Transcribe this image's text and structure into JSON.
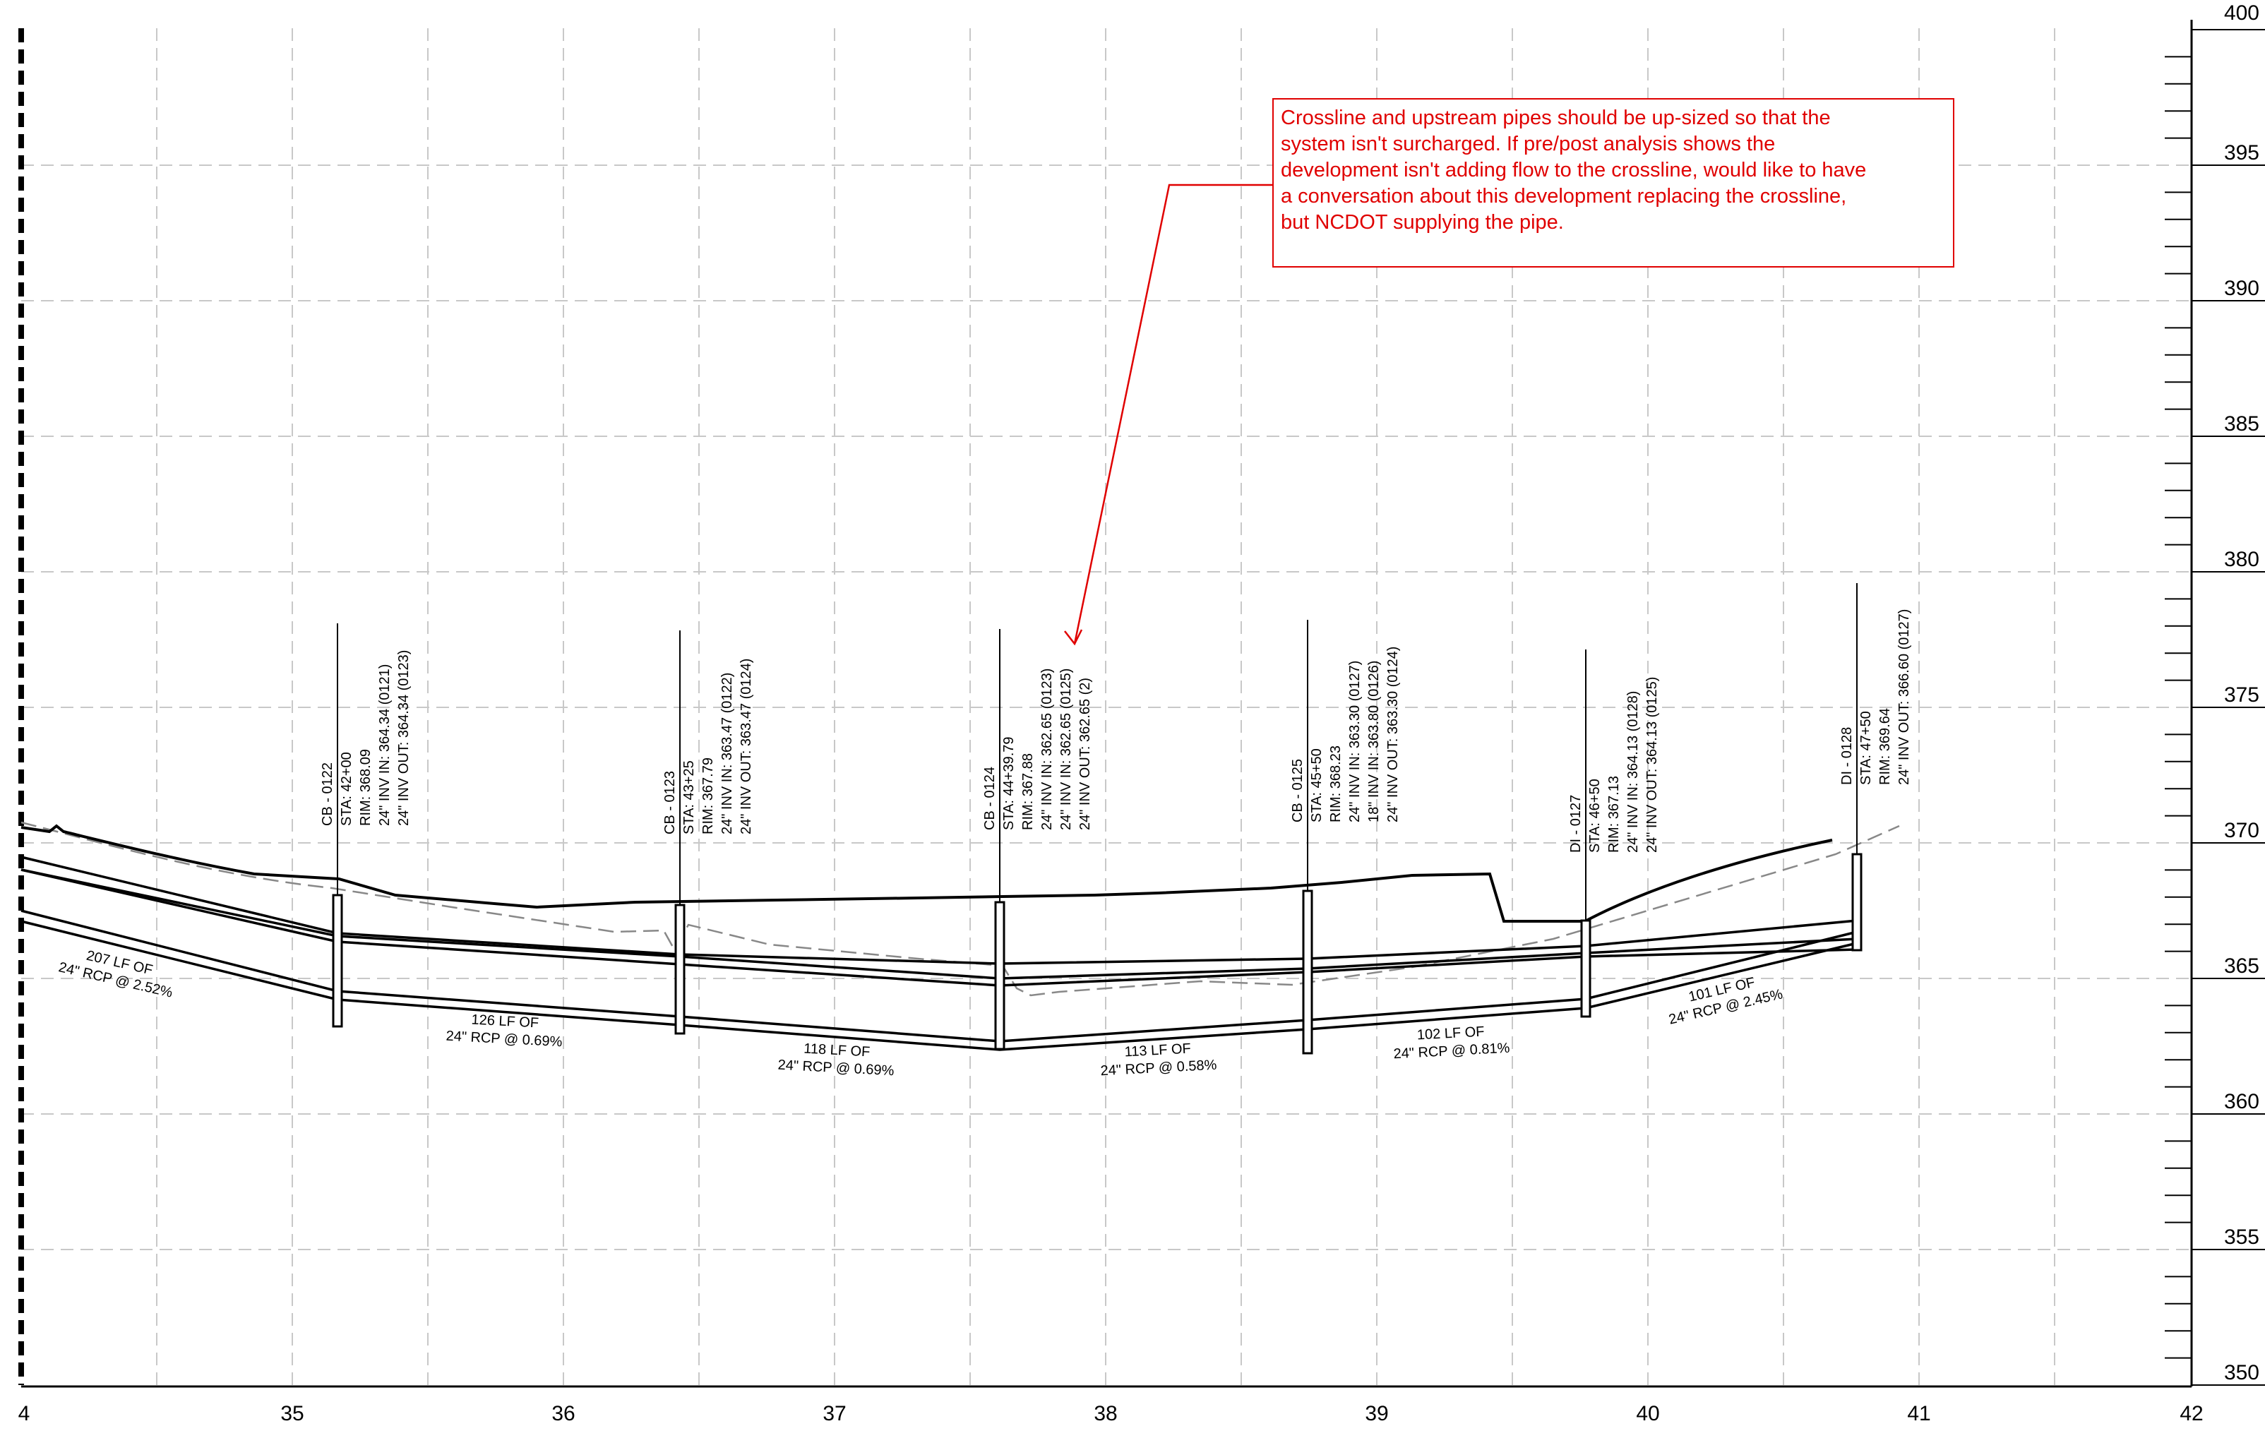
{
  "axes": {
    "x_ticks": [
      "4",
      "35",
      "36",
      "37",
      "38",
      "39",
      "40",
      "41",
      "42"
    ],
    "y_ticks": [
      "400",
      "395",
      "390",
      "385",
      "380",
      "375",
      "370",
      "365",
      "360",
      "355",
      "350"
    ]
  },
  "structures": [
    {
      "name": "CB - 0122",
      "lines": [
        "CB - 0122",
        "STA: 42+00",
        "RIM: 368.09",
        "24\" INV IN: 364.34 (0121)",
        "24\" INV OUT: 364.34 (0123)"
      ]
    },
    {
      "name": "CB - 0123",
      "lines": [
        "CB - 0123",
        "STA: 43+25",
        "RIM: 367.79",
        "24\" INV IN: 363.47 (0122)",
        "24\" INV OUT: 363.47 (0124)"
      ]
    },
    {
      "name": "CB - 0124",
      "lines": [
        "CB - 0124",
        "STA: 44+39.79",
        "RIM: 367.88",
        "24\" INV IN: 362.65 (0123)",
        "24\" INV IN: 362.65 (0125)",
        "24\" INV OUT: 362.65 (2)"
      ]
    },
    {
      "name": "CB - 0125",
      "lines": [
        "CB - 0125",
        "STA: 45+50",
        "RIM: 368.23",
        "24\" INV IN: 363.30 (0127)",
        "18\" INV IN: 363.80 (0126)",
        "24\" INV OUT: 363.30 (0124)"
      ]
    },
    {
      "name": "DI - 0127",
      "lines": [
        "DI - 0127",
        "STA: 46+50",
        "RIM: 367.13",
        "24\" INV IN: 364.13 (0128)",
        "24\" INV OUT: 364.13 (0125)"
      ]
    },
    {
      "name": "DI - 0128",
      "lines": [
        "DI - 0128",
        "STA: 47+50",
        "RIM: 369.64",
        "24\" INV OUT: 366.60 (0127)"
      ]
    }
  ],
  "pipes": [
    {
      "l1": "207 LF OF",
      "l2": "24\" RCP @ 2.52%"
    },
    {
      "l1": "126 LF OF",
      "l2": "24\" RCP @ 0.69%"
    },
    {
      "l1": "118 LF OF",
      "l2": "24\" RCP @ 0.69%"
    },
    {
      "l1": "113 LF OF",
      "l2": "24\" RCP @ 0.58%"
    },
    {
      "l1": "102 LF OF",
      "l2": "24\" RCP @ 0.81%"
    },
    {
      "l1": "101 LF OF",
      "l2": "24\" RCP @ 2.45%"
    }
  ],
  "comment": {
    "lines": [
      "Crossline and upstream pipes should be up-sized so that the",
      "system isn't surcharged. If pre/post analysis shows the",
      "development isn't adding flow to the crossline, would like to have",
      "a conversation about this development replacing the crossline,",
      "but NCDOT supplying the pipe."
    ],
    "color": "#e00000"
  }
}
